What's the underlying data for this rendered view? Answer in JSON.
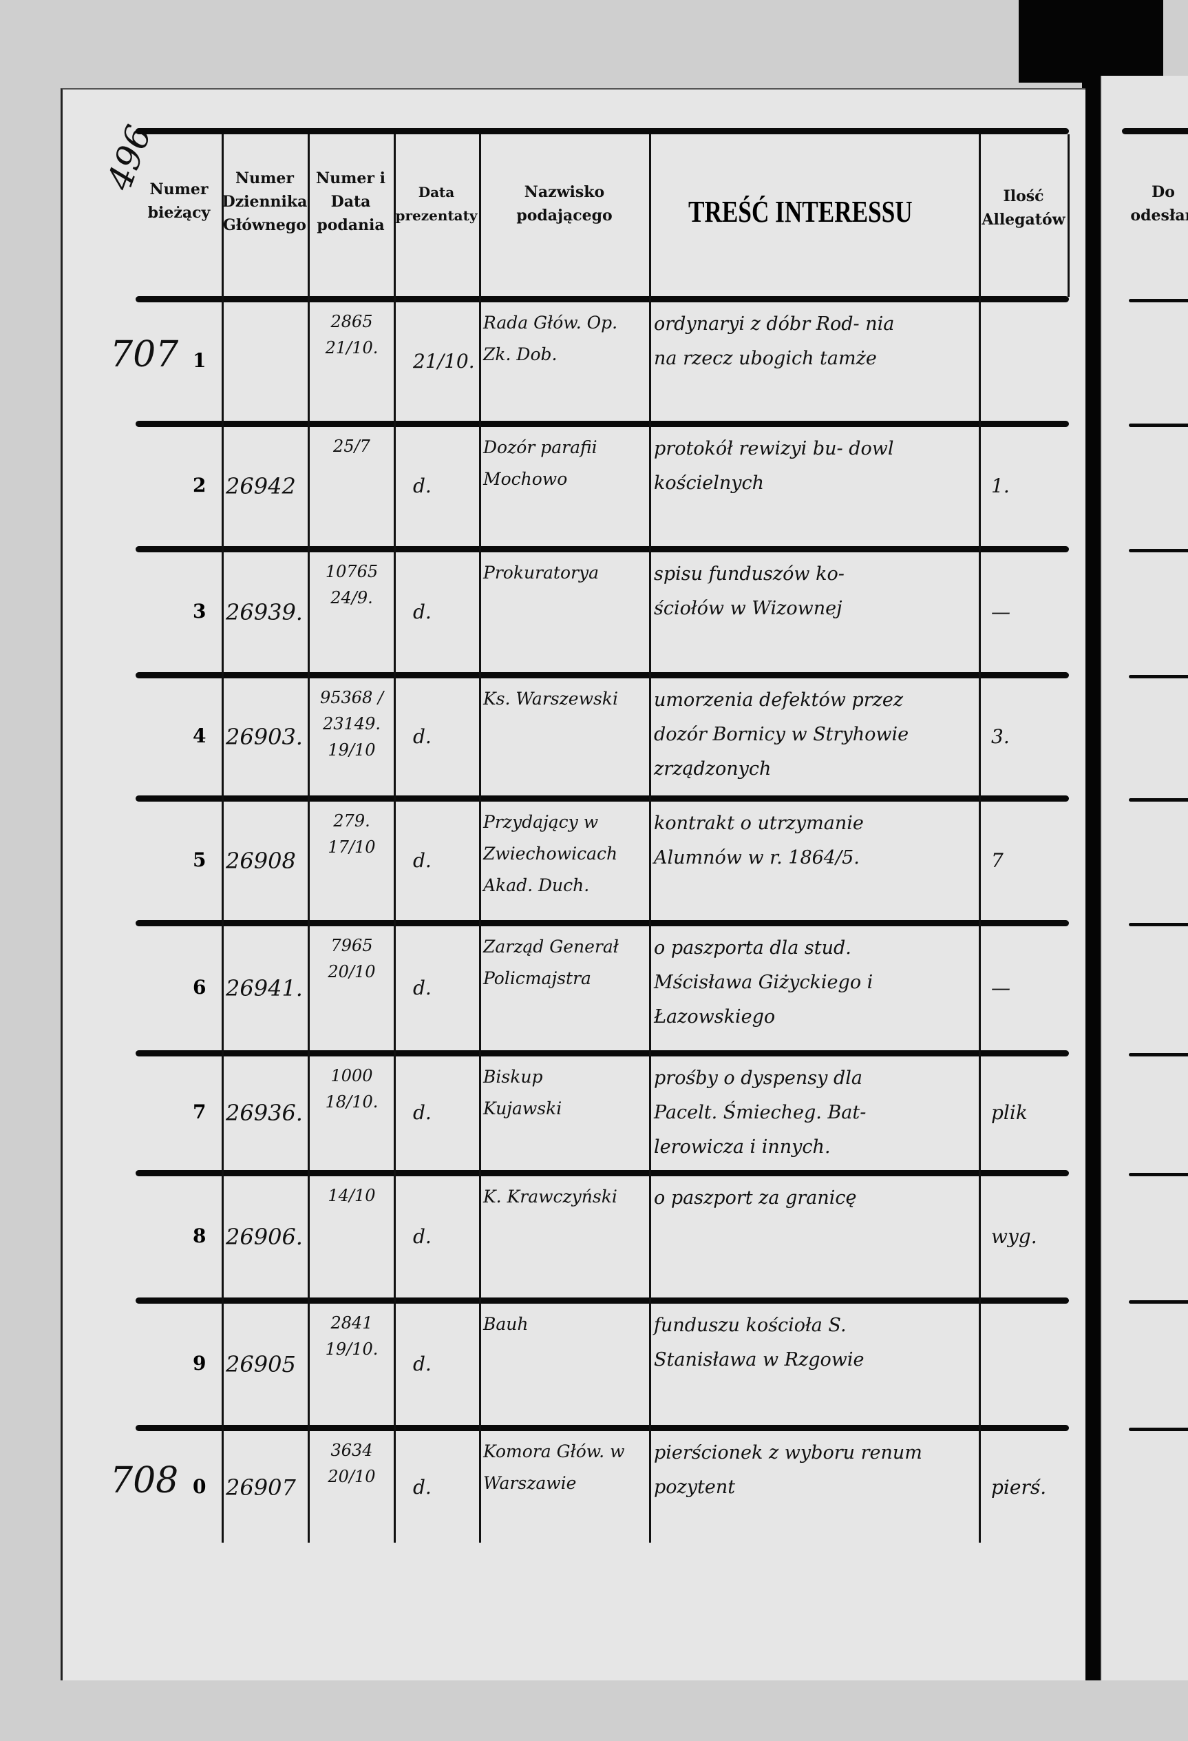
{
  "page_number": "496",
  "headers": {
    "col1": "Numer bieżący",
    "col2": "Numer Dziennika Głównego",
    "col3": "Numer i Data podania",
    "col4": "Data prezentaty",
    "col5": "Nazwisko podającego",
    "col6": "TREŚĆ INTERESSU",
    "col7": "Ilość Allegatów",
    "next_page": "Do odesłan"
  },
  "rows": [
    {
      "margin": "707",
      "no": "1",
      "journal": "",
      "petition": "2865 21/10.",
      "date": "21/10.",
      "name": "Rada Głów. Op. Zk. Dob.",
      "content": "ordynaryi z dóbr Rod- nia na rzecz ubogich tamże",
      "attachments": ""
    },
    {
      "margin": "",
      "no": "2",
      "journal": "26942",
      "petition": "25/7",
      "date": "d.",
      "name": "Dozór parafii Mochowo",
      "content": "protokół rewizyi bu- dowl kościelnych",
      "attachments": "1."
    },
    {
      "margin": "",
      "no": "3",
      "journal": "26939.",
      "petition": "10765 24/9.",
      "date": "d.",
      "name": "Prokuratorya",
      "content": "spisu funduszów ko- ściołów w Wizownej",
      "attachments": "—"
    },
    {
      "margin": "",
      "no": "4",
      "journal": "26903.",
      "petition": "95368 / 23149. 19/10",
      "date": "d.",
      "name": "Ks. Warszewski",
      "content": "umorzenia defektów przez dozór Bornicy w Stryhowie zrządzonych",
      "attachments": "3."
    },
    {
      "margin": "",
      "no": "5",
      "journal": "26908",
      "petition": "279. 17/10",
      "date": "d.",
      "name": "Przydający w Zwiechowicach Akad. Duch.",
      "content": "kontrakt o utrzymanie Alumnów w r. 1864/5.",
      "attachments": "7"
    },
    {
      "margin": "",
      "no": "6",
      "journal": "26941.",
      "petition": "7965 20/10",
      "date": "d.",
      "name": "Zarząd Generał Policmajstra",
      "content": "o paszporta dla stud. Mścisława Giżyckiego i Łazowskiego",
      "attachments": "—"
    },
    {
      "margin": "",
      "no": "7",
      "journal": "26936.",
      "petition": "1000 18/10.",
      "date": "d.",
      "name": "Biskup Kujawski",
      "content": "prośby o dyspensy dla Pacelt. Śmiecheg. Bat- lerowicza i innych.",
      "attachments": "plik"
    },
    {
      "margin": "",
      "no": "8",
      "journal": "26906.",
      "petition": "14/10",
      "date": "d.",
      "name": "K. Krawczyński",
      "content": "o paszport za granicę",
      "attachments": "wyg."
    },
    {
      "margin": "",
      "no": "9",
      "journal": "26905",
      "petition": "2841 19/10.",
      "date": "d.",
      "name": "Bauh",
      "content": "funduszu kościoła S. Stanisława w Rzgowie",
      "attachments": ""
    },
    {
      "margin": "708",
      "no": "0",
      "journal": "26907",
      "petition": "3634 20/10",
      "date": "d.",
      "name": "Komora Głów. w Warszawie",
      "content": "pierścionek z wyboru renum pozytent",
      "attachments": "pierś."
    }
  ]
}
